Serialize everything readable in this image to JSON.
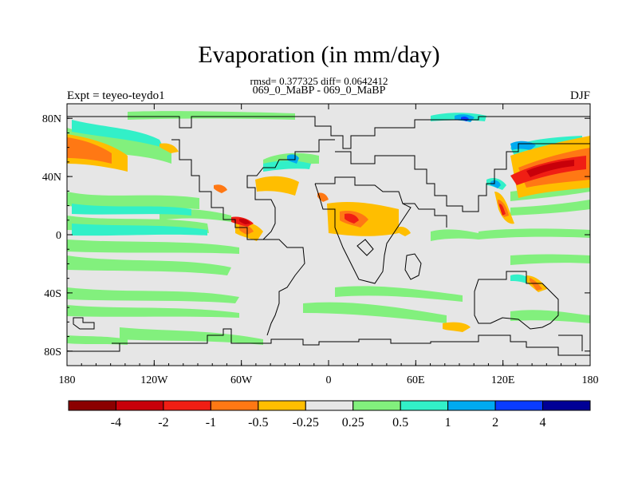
{
  "title": "Evaporation (in mm/day)",
  "stats_text": "rmsd= 0.377325 diff= 0.0642412",
  "cases_text": "069_0_MaBP - 069_0_MaBP",
  "experiment_text": "Expt = teyeo-teydo1",
  "season": "DJF",
  "axes": {
    "lon_range": [
      -180,
      180
    ],
    "lat_range": [
      -90,
      90
    ],
    "x_ticks": [
      {
        "value": -180,
        "label": "180"
      },
      {
        "value": -120,
        "label": "120W"
      },
      {
        "value": -60,
        "label": "60W"
      },
      {
        "value": 0,
        "label": "0"
      },
      {
        "value": 60,
        "label": "60E"
      },
      {
        "value": 120,
        "label": "120E"
      },
      {
        "value": 180,
        "label": "180"
      }
    ],
    "y_ticks": [
      {
        "value": 80,
        "label": "80N"
      },
      {
        "value": 40,
        "label": "40N"
      },
      {
        "value": 0,
        "label": "0"
      },
      {
        "value": -40,
        "label": "40S"
      },
      {
        "value": -80,
        "label": "80S"
      }
    ]
  },
  "colorbar": {
    "colors": [
      "#8b0000",
      "#c8000a",
      "#f01e14",
      "#ff7814",
      "#ffbe00",
      "#e6e6e6",
      "#82f07d",
      "#32f0c8",
      "#00aaf0",
      "#0a3cff",
      "#000096"
    ],
    "labels": [
      "-4",
      "-2",
      "-1",
      "-0.5",
      "-0.25",
      "0.25",
      "0.5",
      "1",
      "2",
      "4"
    ]
  },
  "colors": {
    "neutral": "#e6e6e6",
    "coastline": "#000000"
  }
}
